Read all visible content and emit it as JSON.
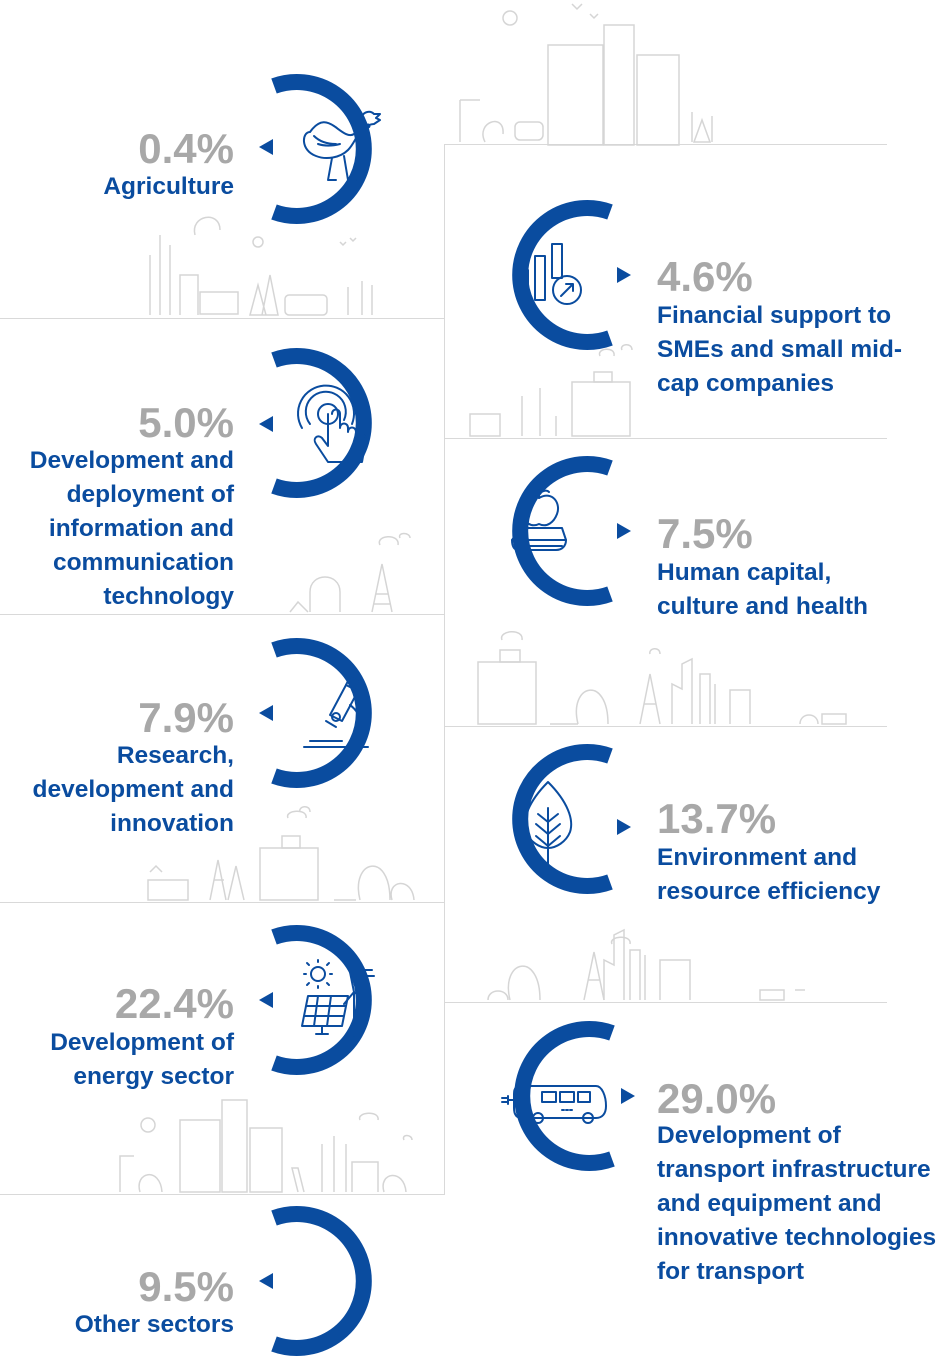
{
  "colors": {
    "ring": "#0a4c9f",
    "percent": "#a8a8a8",
    "label": "#0a4c9f",
    "deco": "#d5d5d5"
  },
  "sectors": [
    {
      "id": "agriculture",
      "percent": "0.4%",
      "label": "Agriculture",
      "icon": "rooster-icon"
    },
    {
      "id": "smes",
      "percent": "4.6%",
      "label": "Financial support to SMEs and small mid-cap companies",
      "icon": "chart-growth-icon"
    },
    {
      "id": "ict",
      "percent": "5.0%",
      "label": "Development and deployment of information and communication technology",
      "icon": "touch-hand-icon"
    },
    {
      "id": "human",
      "percent": "7.5%",
      "label": "Human capital, culture and health",
      "icon": "apple-book-icon"
    },
    {
      "id": "research",
      "percent": "7.9%",
      "label": "Research, development and innovation",
      "icon": "microscope-icon"
    },
    {
      "id": "environment",
      "percent": "13.7%",
      "label": "Environment and resource efficiency",
      "icon": "leaf-icon"
    },
    {
      "id": "energy",
      "percent": "22.4%",
      "label": "Development of energy sector",
      "icon": "solar-wind-icon"
    },
    {
      "id": "transport",
      "percent": "29.0%",
      "label": "Development of transport infrastructure and equipment and innovative technologies for transport",
      "icon": "electric-bus-icon"
    },
    {
      "id": "other",
      "percent": "9.5%",
      "label": "Other sectors",
      "icon": ""
    }
  ]
}
